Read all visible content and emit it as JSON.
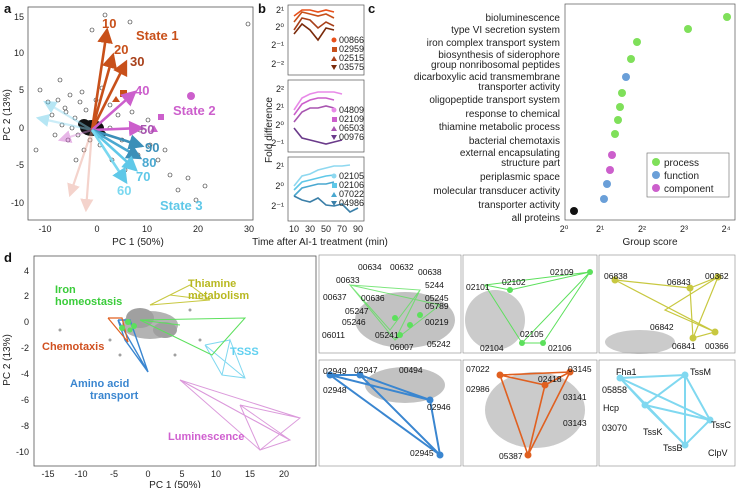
{
  "panels": {
    "a": {
      "letter": "a",
      "xlabel": "PC 1 (50%)",
      "ylabel": "PC 2 (13%)",
      "xticks": [
        "-10",
        "0",
        "10",
        "20",
        "30"
      ],
      "yticks": [
        "15",
        "10",
        "5",
        "0",
        "-5",
        "-10"
      ],
      "states": [
        "State 1",
        "State 2",
        "State 3"
      ],
      "times": [
        "10",
        "20",
        "30",
        "40",
        "50",
        "60",
        "70",
        "80",
        "90"
      ],
      "colors": {
        "state1": "#c8501a",
        "state2": "#cc5fcc",
        "state3": "#5fc8e8",
        "arrow90": "#3b8fb8"
      }
    },
    "b": {
      "letter": "b",
      "ylabel": "Fold difference",
      "xlabel": "Time after AI-1 treatment (min)",
      "xticks": [
        "10",
        "30",
        "50",
        "70",
        "90"
      ],
      "yticks_top": [
        "2¹",
        "2⁰",
        "2⁻¹",
        "2⁻²"
      ],
      "yticks_mid": [
        "2²",
        "2¹",
        "2⁰",
        "2⁻¹"
      ],
      "yticks_bot": [
        "2¹",
        "2⁰",
        "2⁻¹"
      ],
      "top_genes": [
        "00866",
        "02959",
        "02515",
        "03575"
      ],
      "mid_genes": [
        "04809",
        "02109",
        "06503",
        "00976"
      ],
      "bot_genes": [
        "02105",
        "02106",
        "07022",
        "04986"
      ]
    },
    "c": {
      "letter": "c",
      "xlabel": "Group score",
      "xticks": [
        "2⁰",
        "2¹",
        "2²",
        "2³",
        "2⁴"
      ],
      "legend": {
        "process": "process",
        "function": "function",
        "component": "component"
      },
      "categories": [
        "bioluminescence",
        "type VI secretion system",
        "iron complex transport system",
        "biosynthesis of siderophore",
        "group nonribosomal peptides",
        "dicarboxylic acid transmembrane",
        "transporter activity",
        "oligopeptide transport system",
        "response to chemical",
        "thiamine metabolic process",
        "bacterial chemotaxis",
        "external encapsulating",
        "structure part",
        "periplasmic space",
        "molecular transducer activity",
        "transporter activity",
        "all proteins"
      ]
    },
    "d": {
      "letter": "d",
      "xlabel": "PC 1 (50%)",
      "ylabel": "PC 2 (13%)",
      "xticks": [
        "-15",
        "-10",
        "-5",
        "0",
        "5",
        "10",
        "15",
        "20"
      ],
      "yticks": [
        "4",
        "2",
        "0",
        "-2",
        "-4",
        "-6",
        "-8",
        "-10"
      ],
      "groups": {
        "iron": "Iron homeostasis",
        "iron_l1": "Iron",
        "iron_l2": "homeostasis",
        "thiamine_l1": "Thiamine",
        "thiamine_l2": "metabolism",
        "chemotaxis": "Chemotaxis",
        "tsss": "TSSS",
        "amino_l1": "Amino  acid",
        "amino_l2": "transport",
        "lum": "Luminescence"
      },
      "insets": {
        "iron1": [
          "00634",
          "00632",
          "00638",
          "00633",
          "5244",
          "00637",
          "00636",
          "05245",
          "05247",
          "05789",
          "05246",
          "00219",
          "06011",
          "05241",
          "06007",
          "05242"
        ],
        "iron2": [
          "02109",
          "02101",
          "02102",
          "02105",
          "02104",
          "02106"
        ],
        "thiamine": [
          "06838",
          "00362",
          "06843",
          "06842",
          "06841",
          "00366"
        ],
        "amino": [
          "02949",
          "02947",
          "00494",
          "02948",
          "02946",
          "02945"
        ],
        "chemo": [
          "07022",
          "03145",
          "02986",
          "02418",
          "03141",
          "03143",
          "05387"
        ],
        "tss": [
          "Fha1",
          "TssM",
          "05858",
          "Hcp",
          "TssC",
          "03070",
          "TssK",
          "TssB",
          "ClpV"
        ]
      }
    }
  }
}
